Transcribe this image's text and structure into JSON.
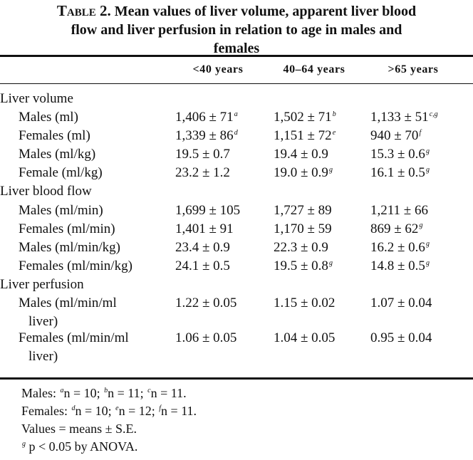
{
  "table": {
    "label": "Table 2.",
    "title_line1": "Mean values of liver volume, apparent liver blood",
    "title_line2": "flow and liver perfusion in relation to age in males and",
    "title_line3": "females",
    "columns": [
      "<40 years",
      "40–64 years",
      ">65 years"
    ],
    "rows": [
      {
        "label": "Liver volume",
        "group": true
      },
      {
        "label": "Males (ml)",
        "cells": [
          {
            "v": "1,406 ± 71",
            "s": "a"
          },
          {
            "v": "1,502 ± 71",
            "s": "b"
          },
          {
            "v": "1,133 ± 51",
            "s": "c,g"
          }
        ]
      },
      {
        "label": "Females (ml)",
        "cells": [
          {
            "v": "1,339 ± 86",
            "s": "d"
          },
          {
            "v": "1,151 ± 72",
            "s": "e"
          },
          {
            "v": "940 ± 70",
            "s": "f"
          }
        ]
      },
      {
        "label": "Males (ml/kg)",
        "cells": [
          {
            "v": "19.5 ± 0.7",
            "s": ""
          },
          {
            "v": "19.4 ± 0.9",
            "s": ""
          },
          {
            "v": "15.3 ± 0.6",
            "s": "g"
          }
        ]
      },
      {
        "label": "Female (ml/kg)",
        "cells": [
          {
            "v": "23.2 ± 1.2",
            "s": ""
          },
          {
            "v": "19.0 ± 0.9",
            "s": "g"
          },
          {
            "v": "16.1 ± 0.5",
            "s": "g"
          }
        ]
      },
      {
        "label": "Liver blood flow",
        "group": true
      },
      {
        "label": "Males (ml/min)",
        "cells": [
          {
            "v": "1,699 ± 105",
            "s": ""
          },
          {
            "v": "1,727 ± 89",
            "s": ""
          },
          {
            "v": "1,211 ± 66",
            "s": ""
          }
        ]
      },
      {
        "label": "Females (ml/min)",
        "cells": [
          {
            "v": "1,401 ± 91",
            "s": ""
          },
          {
            "v": "1,170 ± 59",
            "s": ""
          },
          {
            "v": "869 ± 62",
            "s": "g"
          }
        ]
      },
      {
        "label": "Males (ml/min/kg)",
        "cells": [
          {
            "v": "23.4 ± 0.9",
            "s": ""
          },
          {
            "v": "22.3 ± 0.9",
            "s": ""
          },
          {
            "v": "16.2 ± 0.6",
            "s": "g"
          }
        ]
      },
      {
        "label": "Females (ml/min/kg)",
        "cells": [
          {
            "v": "24.1 ± 0.5",
            "s": ""
          },
          {
            "v": "19.5 ± 0.8",
            "s": "g"
          },
          {
            "v": "14.8 ± 0.5",
            "s": "g"
          }
        ]
      },
      {
        "label": "Liver perfusion",
        "group": true
      },
      {
        "label": "Males (ml/min/ml",
        "label2": "liver)",
        "cells": [
          {
            "v": "1.22 ± 0.05",
            "s": ""
          },
          {
            "v": "1.15 ± 0.02",
            "s": ""
          },
          {
            "v": "1.07 ± 0.04",
            "s": ""
          }
        ]
      },
      {
        "label": "Females (ml/min/ml",
        "label2": "liver)",
        "cells": [
          {
            "v": "1.06 ± 0.05",
            "s": ""
          },
          {
            "v": "1.04 ± 0.05",
            "s": ""
          },
          {
            "v": "0.95 ± 0.04",
            "s": ""
          }
        ]
      }
    ],
    "footnotes": [
      [
        {
          "t": "Males: "
        },
        {
          "s": "a"
        },
        {
          "t": "n = 10; "
        },
        {
          "s": "b"
        },
        {
          "t": "n = 11; "
        },
        {
          "s": "c"
        },
        {
          "t": "n = 11."
        }
      ],
      [
        {
          "t": "Females: "
        },
        {
          "s": "d"
        },
        {
          "t": "n = 10; "
        },
        {
          "s": "e"
        },
        {
          "t": "n = 12; "
        },
        {
          "s": "f"
        },
        {
          "t": "n = 11."
        }
      ],
      [
        {
          "t": "Values = means ± S.E."
        }
      ],
      [
        {
          "s": "g"
        },
        {
          "t": " p < 0.05 by ANOVA."
        }
      ]
    ]
  }
}
